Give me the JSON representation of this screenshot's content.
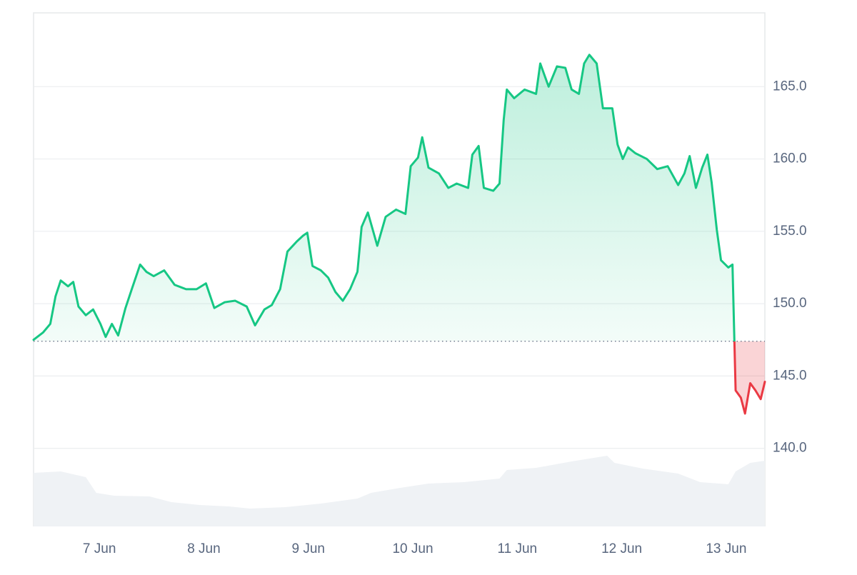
{
  "chart_data": {
    "type": "line",
    "x": [
      6.37,
      6.46,
      6.53,
      6.58,
      6.63,
      6.7,
      6.75,
      6.8,
      6.87,
      6.94,
      7.01,
      7.06,
      7.12,
      7.18,
      7.25,
      7.31,
      7.39,
      7.45,
      7.52,
      7.62,
      7.72,
      7.83,
      7.93,
      8.02,
      8.1,
      8.2,
      8.3,
      8.41,
      8.49,
      8.58,
      8.65,
      8.73,
      8.8,
      8.89,
      8.95,
      8.99,
      9.04,
      9.12,
      9.19,
      9.26,
      9.33,
      9.4,
      9.47,
      9.51,
      9.57,
      9.66,
      9.74,
      9.84,
      9.93,
      9.98,
      10.05,
      10.09,
      10.15,
      10.25,
      10.34,
      10.42,
      10.53,
      10.57,
      10.63,
      10.68,
      10.77,
      10.83,
      10.87,
      10.9,
      10.97,
      11.07,
      11.18,
      11.22,
      11.3,
      11.38,
      11.46,
      11.52,
      11.59,
      11.64,
      11.69,
      11.76,
      11.82,
      11.91,
      11.96,
      12.01,
      12.06,
      12.13,
      12.24,
      12.34,
      12.44,
      12.54,
      12.6,
      12.65,
      12.71,
      12.77,
      12.82,
      12.86,
      12.91,
      12.95,
      13.02,
      13.06,
      13.09,
      13.14,
      13.18,
      13.23,
      13.28,
      13.33,
      13.37
    ],
    "series": [
      {
        "color": "#16c784",
        "below_color": "#ea3943",
        "values": [
          147.5,
          148.0,
          148.6,
          150.5,
          151.6,
          151.2,
          151.5,
          149.8,
          149.2,
          149.6,
          148.6,
          147.7,
          148.6,
          147.8,
          149.7,
          151.0,
          152.7,
          152.2,
          151.9,
          152.3,
          151.3,
          151.0,
          151.0,
          151.4,
          149.7,
          150.1,
          150.2,
          149.8,
          148.5,
          149.6,
          149.9,
          151.0,
          153.6,
          154.3,
          154.7,
          154.9,
          152.6,
          152.3,
          151.8,
          150.8,
          150.2,
          151.0,
          152.2,
          155.3,
          156.3,
          154.0,
          156.0,
          156.5,
          156.2,
          159.5,
          160.1,
          161.5,
          159.4,
          159.0,
          158.0,
          158.3,
          158.0,
          160.3,
          160.9,
          158.0,
          157.8,
          158.3,
          162.7,
          164.8,
          164.2,
          164.8,
          164.5,
          166.6,
          165.0,
          166.4,
          166.3,
          164.8,
          164.5,
          166.6,
          167.2,
          166.6,
          163.5,
          163.5,
          161.0,
          160.0,
          160.8,
          160.4,
          160.0,
          159.3,
          159.5,
          158.2,
          159.0,
          160.2,
          158.0,
          159.4,
          160.3,
          158.4,
          155.1,
          153.0,
          152.5,
          152.7,
          144.0,
          143.5,
          142.4,
          144.5,
          144.0,
          143.4,
          144.6
        ]
      }
    ],
    "baseline": 147.4,
    "volume": {
      "color": "#eff2f5",
      "x": [
        6.37,
        6.63,
        6.87,
        6.97,
        7.14,
        7.48,
        7.69,
        7.96,
        8.24,
        8.44,
        8.78,
        9.12,
        9.47,
        9.6,
        9.88,
        10.15,
        10.49,
        10.83,
        10.9,
        11.18,
        11.52,
        11.86,
        11.93,
        12.2,
        12.54,
        12.75,
        13.02,
        13.09,
        13.23,
        13.37
      ],
      "values": [
        75,
        77,
        69,
        47,
        43,
        42,
        34,
        30,
        28,
        25,
        27,
        32,
        39,
        47,
        54,
        60,
        62,
        67,
        79,
        82,
        91,
        99,
        89,
        81,
        74,
        62,
        59,
        77,
        89,
        92
      ],
      "ylim": [
        0,
        100
      ]
    },
    "xlim": [
      6.37,
      13.37
    ],
    "xticks": [
      {
        "value": 7,
        "label": "7 Jun"
      },
      {
        "value": 8,
        "label": "8 Jun"
      },
      {
        "value": 9,
        "label": "9 Jun"
      },
      {
        "value": 10,
        "label": "10 Jun"
      },
      {
        "value": 11,
        "label": "11 Jun"
      },
      {
        "value": 12,
        "label": "12 Jun"
      },
      {
        "value": 13,
        "label": "13 Jun"
      }
    ],
    "ylim": [
      134.6,
      170.1
    ],
    "yticks": [
      {
        "value": 140,
        "label": "140.0"
      },
      {
        "value": 145,
        "label": "145.0"
      },
      {
        "value": 150,
        "label": "150.0"
      },
      {
        "value": 155,
        "label": "155.0"
      },
      {
        "value": 160,
        "label": "160.0"
      },
      {
        "value": 165,
        "label": "165.0"
      }
    ],
    "grid": true,
    "y_axis_side": "right"
  }
}
